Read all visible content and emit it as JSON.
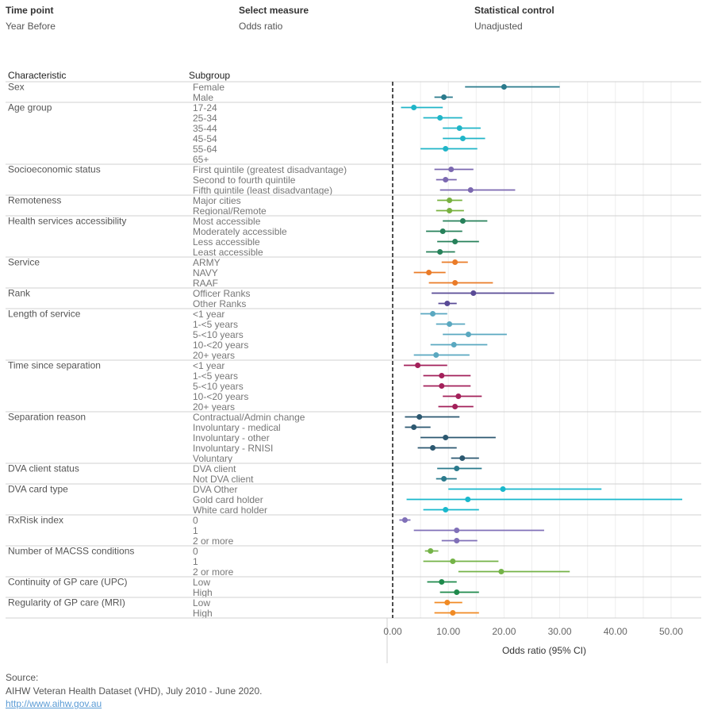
{
  "controls": [
    {
      "label": "Time point",
      "value": "Year Before"
    },
    {
      "label": "Select measure",
      "value": "Odds ratio"
    },
    {
      "label": "Statistical control",
      "value": "Unadjusted"
    }
  ],
  "headers": {
    "characteristic": "Characteristic",
    "subgroup": "Subgroup"
  },
  "source": {
    "label": "Source:",
    "text": "AIHW Veteran Health Dataset (VHD), July 2010 - June 2020.",
    "link": "http://www.aihw.gov.au"
  },
  "colors": {
    "teal": "#2a7a8c",
    "cyan": "#20b5c8",
    "purple": "#7b68b0",
    "green": "#78b13f",
    "darkgreen": "#27815a",
    "orange": "#ea7b28",
    "indigo": "#594a96",
    "lightblue": "#5aa8c0",
    "maroon": "#a3205a",
    "navy": "#2c5870",
    "brightcyan": "#19b8cc",
    "lavender": "#8070b8",
    "lime": "#74b347",
    "forest": "#1f8a4c",
    "amber": "#f08a24"
  },
  "chart_data": {
    "type": "forest",
    "xlabel": "Odds ratio (95% CI)",
    "xlim": [
      0,
      52
    ],
    "xticks": [
      "0.00",
      "10.00",
      "20.00",
      "30.00",
      "40.00",
      "50.00"
    ],
    "reference_line": 0,
    "groups": [
      {
        "characteristic": "Sex",
        "color": "teal",
        "rows": [
          {
            "subgroup": "Female",
            "or": 20.0,
            "lo": 13.0,
            "hi": 30.0
          },
          {
            "subgroup": "Male",
            "or": 9.2,
            "lo": 7.5,
            "hi": 10.8
          }
        ]
      },
      {
        "characteristic": "Age group",
        "color": "cyan",
        "rows": [
          {
            "subgroup": "17-24",
            "or": 3.8,
            "lo": 1.5,
            "hi": 9.0
          },
          {
            "subgroup": "25-34",
            "or": 8.5,
            "lo": 5.5,
            "hi": 12.5
          },
          {
            "subgroup": "35-44",
            "or": 12.0,
            "lo": 9.0,
            "hi": 15.8
          },
          {
            "subgroup": "45-54",
            "or": 12.6,
            "lo": 9.0,
            "hi": 16.6
          },
          {
            "subgroup": "55-64",
            "or": 9.5,
            "lo": 5.0,
            "hi": 15.2
          },
          {
            "subgroup": "65+"
          }
        ]
      },
      {
        "characteristic": "Socioeconomic status",
        "color": "purple",
        "rows": [
          {
            "subgroup": "First quintile (greatest disadvantage)",
            "or": 10.5,
            "lo": 7.5,
            "hi": 14.5
          },
          {
            "subgroup": "Second to fourth quintile",
            "or": 9.5,
            "lo": 7.8,
            "hi": 11.5
          },
          {
            "subgroup": "Fifth quintile (least disadvantage)",
            "or": 14.0,
            "lo": 8.5,
            "hi": 22.0
          }
        ]
      },
      {
        "characteristic": "Remoteness",
        "color": "green",
        "rows": [
          {
            "subgroup": "Major cities",
            "or": 10.2,
            "lo": 8.0,
            "hi": 12.5
          },
          {
            "subgroup": "Regional/Remote",
            "or": 10.2,
            "lo": 7.8,
            "hi": 12.8
          }
        ]
      },
      {
        "characteristic": "Health services accessibility",
        "color": "darkgreen",
        "rows": [
          {
            "subgroup": "Most accessible",
            "or": 12.6,
            "lo": 9.0,
            "hi": 17.0
          },
          {
            "subgroup": "Moderately accessible",
            "or": 9.0,
            "lo": 6.0,
            "hi": 12.5
          },
          {
            "subgroup": "Less accessible",
            "or": 11.2,
            "lo": 8.0,
            "hi": 15.5
          },
          {
            "subgroup": "Least accessible",
            "or": 8.5,
            "lo": 6.0,
            "hi": 11.2
          }
        ]
      },
      {
        "characteristic": "Service",
        "color": "orange",
        "rows": [
          {
            "subgroup": "ARMY",
            "or": 11.2,
            "lo": 8.8,
            "hi": 13.5
          },
          {
            "subgroup": "NAVY",
            "or": 6.5,
            "lo": 3.8,
            "hi": 9.5
          },
          {
            "subgroup": "RAAF",
            "or": 11.2,
            "lo": 6.5,
            "hi": 18.0
          }
        ]
      },
      {
        "characteristic": "Rank",
        "color": "indigo",
        "rows": [
          {
            "subgroup": "Officer Ranks",
            "or": 14.5,
            "lo": 7.0,
            "hi": 29.0
          },
          {
            "subgroup": "Other Ranks",
            "or": 9.8,
            "lo": 8.2,
            "hi": 11.5
          }
        ]
      },
      {
        "characteristic": "Length of service",
        "color": "lightblue",
        "rows": [
          {
            "subgroup": "<1 year",
            "or": 7.2,
            "lo": 5.0,
            "hi": 9.8
          },
          {
            "subgroup": "1-<5 years",
            "or": 10.2,
            "lo": 7.8,
            "hi": 13.0
          },
          {
            "subgroup": "5-<10 years",
            "or": 13.6,
            "lo": 9.0,
            "hi": 20.5
          },
          {
            "subgroup": "10-<20 years",
            "or": 11.0,
            "lo": 6.8,
            "hi": 17.0
          },
          {
            "subgroup": "20+ years",
            "or": 7.8,
            "lo": 3.8,
            "hi": 13.8
          }
        ]
      },
      {
        "characteristic": "Time since separation",
        "color": "maroon",
        "rows": [
          {
            "subgroup": "<1 year",
            "or": 4.5,
            "lo": 2.0,
            "hi": 9.8
          },
          {
            "subgroup": "1-<5 years",
            "or": 8.8,
            "lo": 5.5,
            "hi": 14.0
          },
          {
            "subgroup": "5-<10 years",
            "or": 8.8,
            "lo": 5.5,
            "hi": 14.0
          },
          {
            "subgroup": "10-<20 years",
            "or": 11.8,
            "lo": 9.0,
            "hi": 16.0
          },
          {
            "subgroup": "20+ years",
            "or": 11.2,
            "lo": 8.2,
            "hi": 14.5
          }
        ]
      },
      {
        "characteristic": "Separation reason",
        "color": "navy",
        "rows": [
          {
            "subgroup": "Contractual/Admin change",
            "or": 4.8,
            "lo": 2.2,
            "hi": 12.0
          },
          {
            "subgroup": "Involuntary - medical",
            "or": 3.8,
            "lo": 2.2,
            "hi": 6.8
          },
          {
            "subgroup": "Involuntary - other",
            "or": 9.5,
            "lo": 5.0,
            "hi": 18.5
          },
          {
            "subgroup": "Involuntary - RNISI",
            "or": 7.2,
            "lo": 4.5,
            "hi": 11.5
          },
          {
            "subgroup": "Voluntary",
            "or": 12.5,
            "lo": 10.5,
            "hi": 15.5
          }
        ]
      },
      {
        "characteristic": "DVA client status",
        "color": "teal",
        "rows": [
          {
            "subgroup": "DVA client",
            "or": 11.5,
            "lo": 8.0,
            "hi": 16.0
          },
          {
            "subgroup": "Not DVA client",
            "or": 9.2,
            "lo": 7.8,
            "hi": 11.5
          }
        ]
      },
      {
        "characteristic": "DVA card type",
        "color": "brightcyan",
        "rows": [
          {
            "subgroup": "DVA Other",
            "or": 19.8,
            "lo": 10.0,
            "hi": 37.5
          },
          {
            "subgroup": "Gold card holder",
            "or": 13.5,
            "lo": 2.5,
            "hi": 52.0
          },
          {
            "subgroup": "White card holder",
            "or": 9.5,
            "lo": 5.5,
            "hi": 15.5
          }
        ]
      },
      {
        "characteristic": "RxRisk index",
        "color": "lavender",
        "rows": [
          {
            "subgroup": "0",
            "or": 2.2,
            "lo": 1.2,
            "hi": 3.2
          },
          {
            "subgroup": "1",
            "or": 11.5,
            "lo": 3.8,
            "hi": 27.2
          },
          {
            "subgroup": "2 or more",
            "or": 11.5,
            "lo": 8.8,
            "hi": 15.2
          }
        ]
      },
      {
        "characteristic": "Number of MACSS conditions",
        "color": "lime",
        "rows": [
          {
            "subgroup": "0",
            "or": 6.8,
            "lo": 5.8,
            "hi": 8.2
          },
          {
            "subgroup": "1",
            "or": 10.8,
            "lo": 5.5,
            "hi": 19.0
          },
          {
            "subgroup": "2 or more",
            "or": 19.5,
            "lo": 11.8,
            "hi": 31.8
          }
        ]
      },
      {
        "characteristic": "Continuity of GP care (UPC)",
        "color": "forest",
        "rows": [
          {
            "subgroup": "Low",
            "or": 8.8,
            "lo": 6.2,
            "hi": 11.5
          },
          {
            "subgroup": "High",
            "or": 11.5,
            "lo": 8.5,
            "hi": 15.5
          }
        ]
      },
      {
        "characteristic": "Regularity of GP care (MRI)",
        "color": "amber",
        "rows": [
          {
            "subgroup": "Low",
            "or": 9.8,
            "lo": 7.5,
            "hi": 12.5
          },
          {
            "subgroup": "High",
            "or": 10.8,
            "lo": 7.5,
            "hi": 15.5
          }
        ]
      }
    ]
  }
}
